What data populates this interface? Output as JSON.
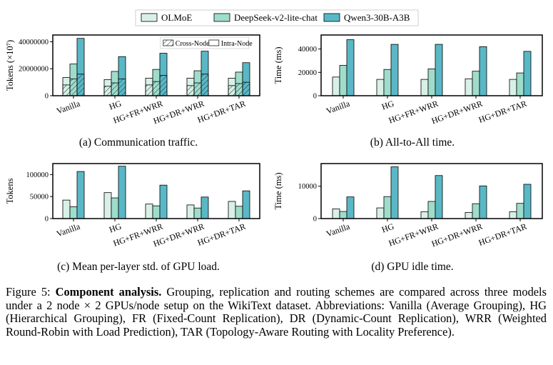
{
  "legend": {
    "series": [
      {
        "name": "OLMoE",
        "color": "#d9f0e6"
      },
      {
        "name": "DeepSeek-v2-lite-chat",
        "color": "#9fdccb"
      },
      {
        "name": "Qwen3-30B-A3B",
        "color": "#5ab8c6"
      }
    ]
  },
  "chart_data": [
    {
      "id": "a",
      "type": "bar",
      "caption": "(a) Communication traffic.",
      "ylabel": "Tokens (×10⁷)",
      "ylim": [
        0,
        45000000
      ],
      "yticks": [
        0,
        20000000,
        40000000
      ],
      "ytick_labels": [
        "0",
        "20000000",
        "40000000"
      ],
      "categories": [
        "Vanilla",
        "HG",
        "HG+FR+WRR",
        "HG+DR+WRR",
        "HG+DR+TAR"
      ],
      "series": [
        {
          "name": "OLMoE",
          "values": [
            13500000,
            12000000,
            13000000,
            13000000,
            13000000
          ],
          "cross_node": [
            8000000,
            7000000,
            8000000,
            7500000,
            7500000
          ]
        },
        {
          "name": "DeepSeek-v2-lite-chat",
          "values": [
            23500000,
            18000000,
            19500000,
            18500000,
            17500000
          ],
          "cross_node": [
            12500000,
            9500000,
            10500000,
            9500000,
            9000000
          ]
        },
        {
          "name": "Qwen3-30B-A3B",
          "values": [
            42500000,
            29000000,
            31500000,
            33000000,
            24500000
          ],
          "cross_node": [
            16000000,
            12500000,
            15000000,
            16000000,
            10000000
          ]
        }
      ],
      "pattern_legend": [
        "Cross-Node",
        "Intra-Node"
      ]
    },
    {
      "id": "b",
      "type": "bar",
      "caption": "(b) All-to-All time.",
      "ylabel": "Time (ms)",
      "ylim": [
        0,
        52000
      ],
      "yticks": [
        0,
        20000,
        40000
      ],
      "ytick_labels": [
        "0",
        "20000",
        "40000"
      ],
      "categories": [
        "Vanilla",
        "HG",
        "HG+FR+WRR",
        "HG+DR+WRR",
        "HG+DR+TAR"
      ],
      "series": [
        {
          "name": "OLMoE",
          "values": [
            16000,
            14000,
            14000,
            14500,
            14000
          ]
        },
        {
          "name": "DeepSeek-v2-lite-chat",
          "values": [
            26000,
            22500,
            23000,
            21000,
            19500
          ]
        },
        {
          "name": "Qwen3-30B-A3B",
          "values": [
            48000,
            44000,
            44000,
            42000,
            38000
          ]
        }
      ]
    },
    {
      "id": "c",
      "type": "bar",
      "caption": "(c) Mean per-layer std. of GPU load.",
      "ylabel": "Tokens",
      "ylim": [
        0,
        125000
      ],
      "yticks": [
        0,
        50000,
        100000
      ],
      "ytick_labels": [
        "0",
        "50000",
        "100000"
      ],
      "categories": [
        "Vanilla",
        "HG",
        "HG+FR+WRR",
        "HG+DR+WRR",
        "HG+DR+TAR"
      ],
      "series": [
        {
          "name": "OLMoE",
          "values": [
            42000,
            59000,
            33000,
            31000,
            39000
          ]
        },
        {
          "name": "DeepSeek-v2-lite-chat",
          "values": [
            27000,
            47000,
            29000,
            24000,
            28000
          ]
        },
        {
          "name": "Qwen3-30B-A3B",
          "values": [
            107000,
            119000,
            76000,
            49000,
            63000
          ]
        }
      ]
    },
    {
      "id": "d",
      "type": "bar",
      "caption": "(d) GPU idle time.",
      "ylabel": "Time (ms)",
      "ylim": [
        0,
        17000
      ],
      "yticks": [
        0,
        10000
      ],
      "ytick_labels": [
        "0",
        "10000"
      ],
      "categories": [
        "Vanilla",
        "HG",
        "HG+FR+WRR",
        "HG+DR+WRR",
        "HG+DR+TAR"
      ],
      "series": [
        {
          "name": "OLMoE",
          "values": [
            3000,
            3300,
            2100,
            1900,
            2100
          ]
        },
        {
          "name": "DeepSeek-v2-lite-chat",
          "values": [
            2200,
            6800,
            5300,
            4600,
            4700
          ]
        },
        {
          "name": "Qwen3-30B-A3B",
          "values": [
            6700,
            16000,
            13300,
            10100,
            10600
          ]
        }
      ]
    }
  ],
  "caption": {
    "label": "Figure 5:",
    "title": "Component analysis.",
    "text": "Grouping, replication and routing schemes are compared across three models under a 2 node × 2 GPUs/node setup on the WikiText dataset. Abbreviations: Vanilla (Average Grouping), HG (Hierarchical Grouping), FR (Fixed-Count Replication), DR (Dynamic-Count Replication), WRR (Weighted Round-Robin with Load Prediction), TAR (Topology-Aware Routing with Locality Preference)."
  }
}
